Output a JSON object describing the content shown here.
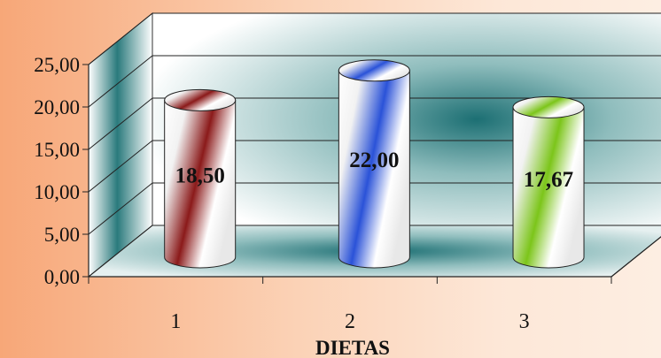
{
  "chart_data": {
    "type": "bar",
    "style": "3d-cylinder",
    "categories": [
      "1",
      "2",
      "3"
    ],
    "values": [
      18.5,
      22.0,
      17.67
    ],
    "value_labels": [
      "18,50",
      "22,00",
      "17,67"
    ],
    "title": "",
    "xlabel": "DIETAS",
    "ylabel": "",
    "ylim": [
      0,
      25
    ],
    "y_ticks": [
      "0,00",
      "5,00",
      "10,00",
      "15,00",
      "20,00",
      "25,00"
    ],
    "grid": true,
    "legend": "none",
    "bar_colors": [
      "#8b1a1a",
      "#2a52d8",
      "#7cc51a"
    ],
    "wall_color": "#1c6f73",
    "background_colors": [
      "#f7a778",
      "#fdeee2"
    ]
  }
}
